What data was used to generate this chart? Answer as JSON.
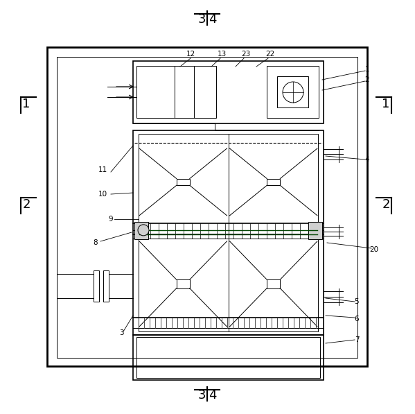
{
  "bg_color": "#ffffff",
  "lc": "#000000",
  "lc_gray": "#888888",
  "lw_thick": 2.0,
  "lw_med": 1.2,
  "lw_thin": 0.7,
  "ann_fs": 7.5,
  "sec_fs": 13,
  "fig_w": 5.99,
  "fig_h": 5.97,
  "dpi": 100
}
